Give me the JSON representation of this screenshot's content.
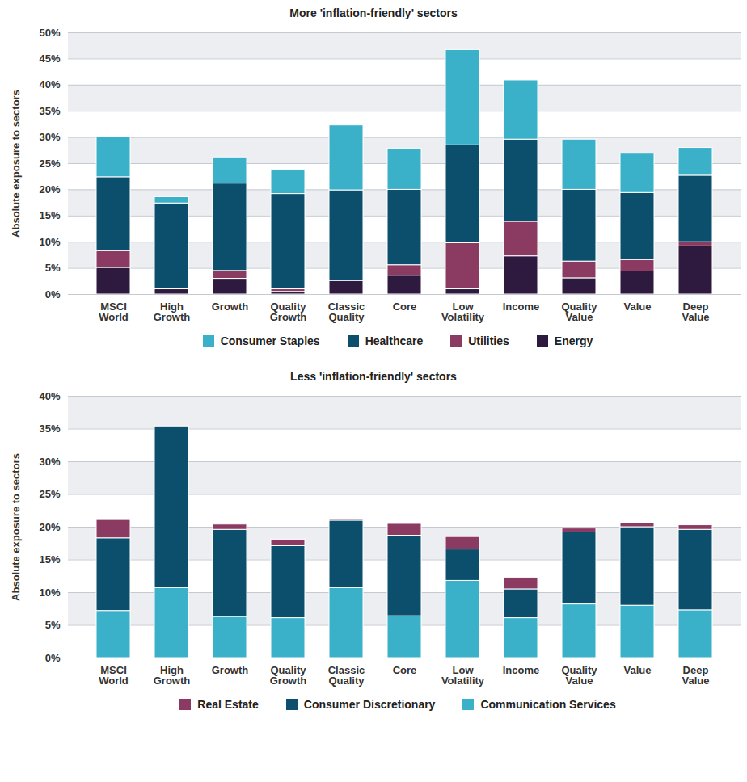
{
  "chart_data": [
    {
      "type": "bar",
      "stacked": true,
      "grid": true,
      "legend": "bottom",
      "title": "More 'inflation-friendly' sectors",
      "y_label": "Absolute exposure to sectors",
      "categories": [
        "MSCI World",
        "High Growth",
        "Growth",
        "Quality Growth",
        "Classic Quality",
        "Core",
        "Low Volatility",
        "Income",
        "Quality Value",
        "Value",
        "Deep Value"
      ],
      "series": [
        {
          "name": "Consumer Staples",
          "color": "#3bb0c9",
          "values": [
            7.7,
            1.2,
            5.0,
            4.6,
            12.4,
            7.8,
            18.2,
            11.3,
            9.6,
            7.5,
            5.3
          ]
        },
        {
          "name": "Healthcare",
          "color": "#0b4f6c",
          "values": [
            14.1,
            16.4,
            16.7,
            18.2,
            17.3,
            14.4,
            18.7,
            15.7,
            13.7,
            12.8,
            12.7
          ]
        },
        {
          "name": "Utilities",
          "color": "#8b3a62",
          "values": [
            3.2,
            0,
            1.5,
            0.5,
            0,
            2.0,
            8.8,
            6.6,
            3.2,
            2.2,
            0.8
          ]
        },
        {
          "name": "Energy",
          "color": "#2e1a3f",
          "values": [
            5.1,
            1.0,
            3.0,
            0.5,
            2.6,
            3.6,
            1.0,
            7.3,
            3.1,
            4.4,
            9.2
          ]
        }
      ],
      "ylim": [
        0,
        50
      ],
      "yticks": [
        {
          "value": 0,
          "label": "0%"
        },
        {
          "value": 5,
          "label": "5%"
        },
        {
          "value": 10,
          "label": "10%"
        },
        {
          "value": 15,
          "label": "15%"
        },
        {
          "value": 20,
          "label": "20%"
        },
        {
          "value": 25,
          "label": "25%"
        },
        {
          "value": 30,
          "label": "30%"
        },
        {
          "value": 35,
          "label": "35%"
        },
        {
          "value": 40,
          "label": "40%"
        },
        {
          "value": 45,
          "label": "45%"
        },
        {
          "value": 50,
          "label": "50%"
        }
      ]
    },
    {
      "type": "bar",
      "stacked": true,
      "grid": true,
      "legend": "bottom",
      "title": "Less 'inflation-friendly' sectors",
      "y_label": "Absolute exposure to sectors",
      "categories": [
        "MSCI World",
        "High Growth",
        "Growth",
        "Quality Growth",
        "Classic Quality",
        "Core",
        "Low Volatility",
        "Income",
        "Quality Value",
        "Value",
        "Deep Value"
      ],
      "series": [
        {
          "name": "Real Estate",
          "color": "#8b3a62",
          "values": [
            2.8,
            0,
            0.8,
            1.0,
            0.2,
            1.8,
            1.9,
            1.8,
            0.6,
            0.6,
            0.7
          ]
        },
        {
          "name": "Consumer Discretionary",
          "color": "#0b4f6c",
          "values": [
            11.1,
            24.7,
            13.3,
            11.0,
            10.3,
            12.3,
            4.8,
            4.4,
            11.0,
            12.0,
            12.3
          ]
        },
        {
          "name": "Communication Services",
          "color": "#3bb0c9",
          "values": [
            7.2,
            10.7,
            6.3,
            6.1,
            10.7,
            6.4,
            11.8,
            6.1,
            8.2,
            8.0,
            7.3
          ]
        }
      ],
      "ylim": [
        0,
        40
      ],
      "yticks": [
        {
          "value": 0,
          "label": "0%"
        },
        {
          "value": 5,
          "label": "5%"
        },
        {
          "value": 10,
          "label": "10%"
        },
        {
          "value": 15,
          "label": "15%"
        },
        {
          "value": 20,
          "label": "20%"
        },
        {
          "value": 25,
          "label": "25%"
        },
        {
          "value": 30,
          "label": "30%"
        },
        {
          "value": 35,
          "label": "35%"
        },
        {
          "value": 40,
          "label": "40%"
        }
      ]
    }
  ]
}
